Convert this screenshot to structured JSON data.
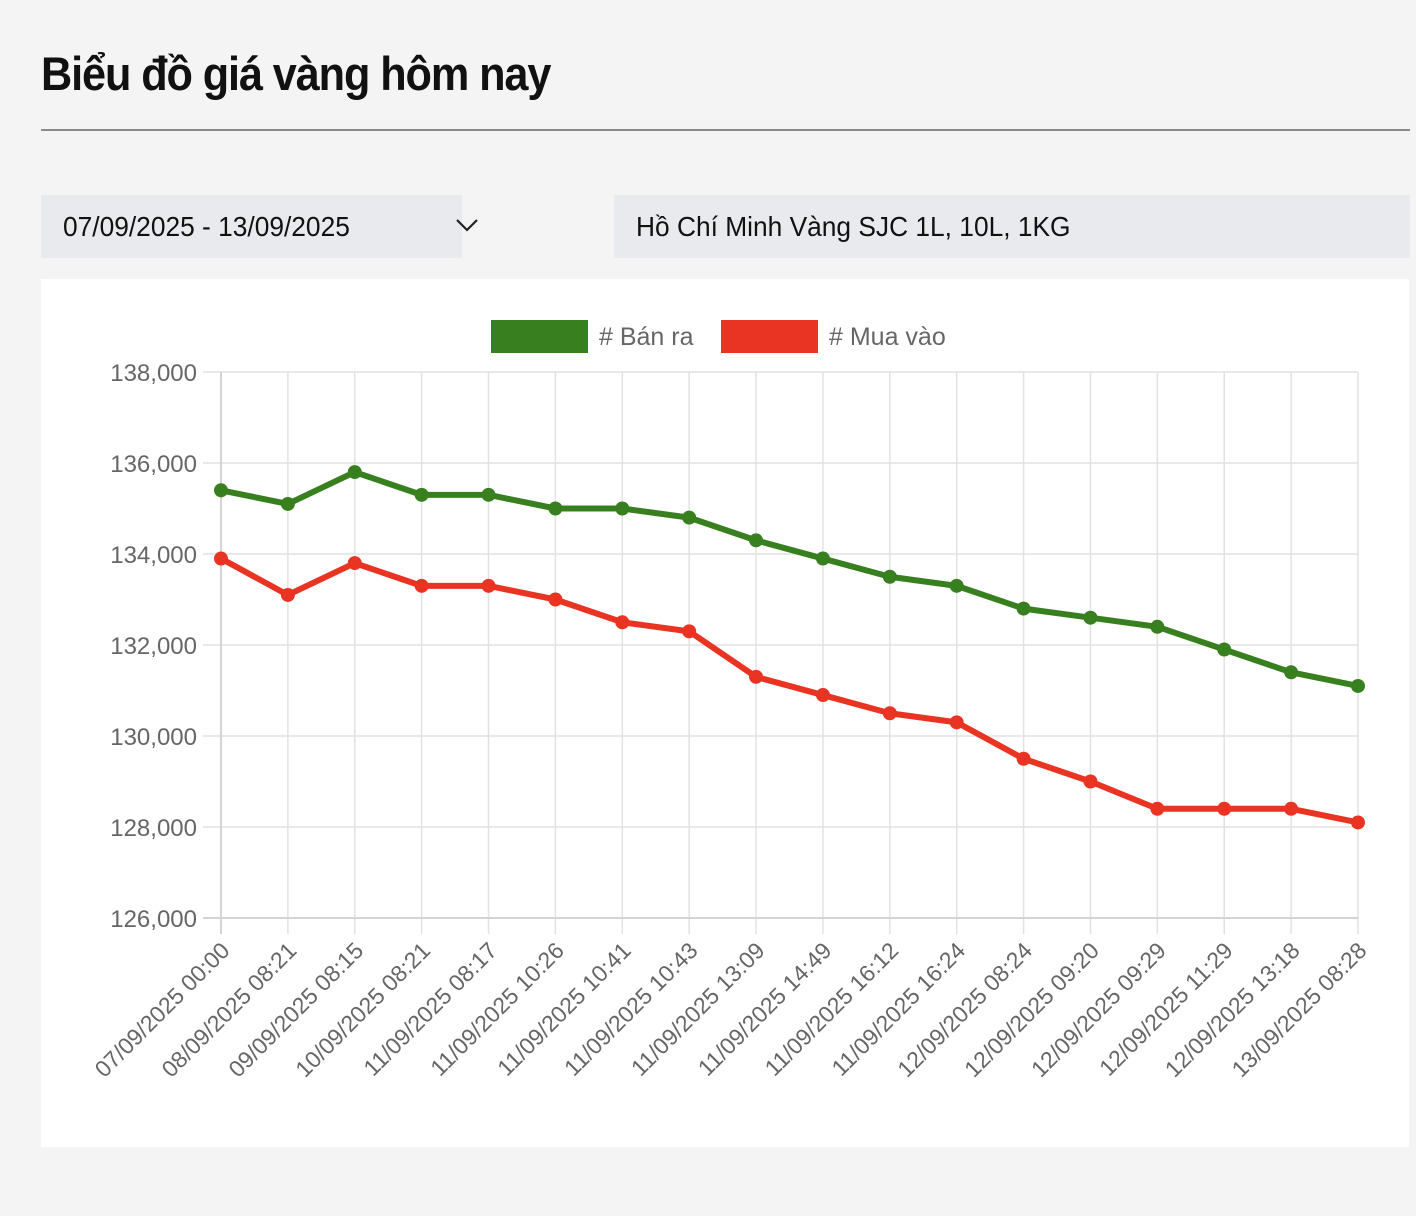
{
  "page": {
    "title": "Biểu đồ giá vàng hôm nay"
  },
  "filters": {
    "date_range": {
      "value": "07/09/2025 - 13/09/2025",
      "icon": "chevron-down-icon"
    },
    "product": {
      "value": "Hồ Chí Minh Vàng SJC 1L, 10L, 1KG",
      "icon": "chevron-down-icon"
    }
  },
  "colors": {
    "ban_ra": "#38801f",
    "mua_vao": "#e93423",
    "grid": "#e2e2e2",
    "tick_text": "#666666"
  },
  "chart_data": {
    "type": "line",
    "title": "",
    "xlabel": "",
    "ylabel": "",
    "ylim": [
      126000,
      138000
    ],
    "yticks": [
      "138,000",
      "136,000",
      "134,000",
      "132,000",
      "130,000",
      "128,000",
      "126,000"
    ],
    "grid": true,
    "legend_position": "top",
    "categories": [
      "07/09/2025 00:00",
      "08/09/2025 08:21",
      "09/09/2025 08:15",
      "10/09/2025 08:21",
      "11/09/2025 08:17",
      "11/09/2025 10:26",
      "11/09/2025 10:41",
      "11/09/2025 10:43",
      "11/09/2025 13:09",
      "11/09/2025 14:49",
      "11/09/2025 16:12",
      "11/09/2025 16:24",
      "12/09/2025 08:24",
      "12/09/2025 09:20",
      "12/09/2025 09:29",
      "12/09/2025 11:29",
      "12/09/2025 13:18",
      "13/09/2025 08:28"
    ],
    "series": [
      {
        "name": "# Bán ra",
        "color": "#38801f",
        "values": [
          135400,
          135100,
          135800,
          135300,
          135300,
          135000,
          135000,
          134800,
          134300,
          133900,
          133500,
          133300,
          132800,
          132600,
          132400,
          131900,
          131400,
          131100
        ]
      },
      {
        "name": "# Mua vào",
        "color": "#e93423",
        "values": [
          133900,
          133100,
          133800,
          133300,
          133300,
          133000,
          132500,
          132300,
          131300,
          130900,
          130500,
          130300,
          129500,
          129000,
          128400,
          128400,
          128400,
          128100
        ]
      }
    ]
  }
}
